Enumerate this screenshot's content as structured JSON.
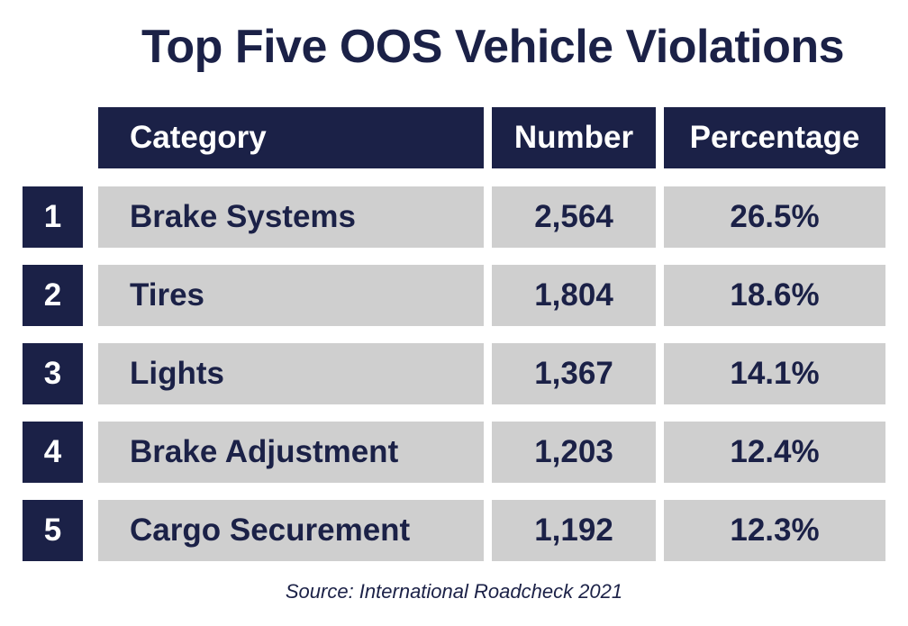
{
  "chart_data": {
    "type": "table",
    "title": "Top Five OOS Vehicle Violations",
    "columns": [
      "Category",
      "Number",
      "Percentage"
    ],
    "rows": [
      {
        "rank": "1",
        "category": "Brake Systems",
        "number": "2,564",
        "percentage": "26.5%"
      },
      {
        "rank": "2",
        "category": "Tires",
        "number": "1,804",
        "percentage": "18.6%"
      },
      {
        "rank": "3",
        "category": "Lights",
        "number": "1,367",
        "percentage": "14.1%"
      },
      {
        "rank": "4",
        "category": "Brake Adjustment",
        "number": "1,203",
        "percentage": "12.4%"
      },
      {
        "rank": "5",
        "category": "Cargo Securement",
        "number": "1,192",
        "percentage": "12.3%"
      }
    ],
    "source": "Source: International Roadcheck 2021"
  },
  "colors": {
    "navy": "#1b2147",
    "row_bg": "#cfcfcf",
    "header_text": "#ffffff"
  }
}
